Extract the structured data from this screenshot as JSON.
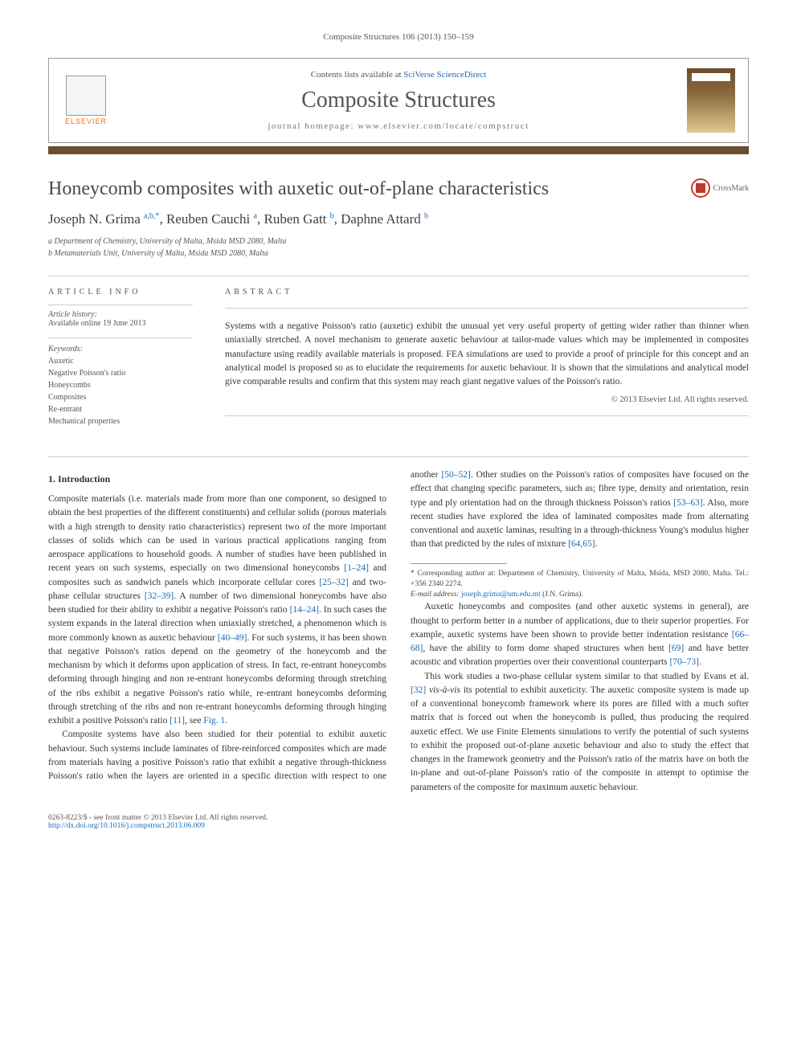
{
  "journal_ref": "Composite Structures 106 (2013) 150–159",
  "header": {
    "contents_prefix": "Contents lists available at ",
    "contents_link": "SciVerse ScienceDirect",
    "journal_name": "Composite Structures",
    "homepage_prefix": "journal homepage: ",
    "homepage_url": "www.elsevier.com/locate/compstruct",
    "publisher": "ELSEVIER",
    "cover_label": "COMPOSITE STRUCTURES"
  },
  "accent_color": "#6b4c2e",
  "title": "Honeycomb composites with auxetic out-of-plane characteristics",
  "crossmark": "CrossMark",
  "authors_html": "Joseph N. Grima <sup>a,b,*</sup>, Reuben Cauchi <sup>a</sup>, Ruben Gatt <sup>b</sup>, Daphne Attard <sup>b</sup>",
  "affiliations": [
    "a Department of Chemistry, University of Malta, Msida MSD 2080, Malta",
    "b Metamaterials Unit, University of Malta, Msida MSD 2080, Malta"
  ],
  "info": {
    "heading": "ARTICLE INFO",
    "history_label": "Article history:",
    "history_value": "Available online 19 June 2013",
    "keywords_label": "Keywords:",
    "keywords": [
      "Auxetic",
      "Negative Poisson's ratio",
      "Honeycombs",
      "Composites",
      "Re-entrant",
      "Mechanical properties"
    ]
  },
  "abstract": {
    "heading": "ABSTRACT",
    "text": "Systems with a negative Poisson's ratio (auxetic) exhibit the unusual yet very useful property of getting wider rather than thinner when uniaxially stretched. A novel mechanism to generate auxetic behaviour at tailor-made values which may be implemented in composites manufacture using readily available materials is proposed. FEA simulations are used to provide a proof of principle for this concept and an analytical model is proposed so as to elucidate the requirements for auxetic behaviour. It is shown that the simulations and analytical model give comparable results and confirm that this system may reach giant negative values of the Poisson's ratio.",
    "copyright": "© 2013 Elsevier Ltd. All rights reserved."
  },
  "section1": {
    "title": "1. Introduction",
    "p1": "Composite materials (i.e. materials made from more than one component, so designed to obtain the best properties of the different constituents) and cellular solids (porous materials with a high strength to density ratio characteristics) represent two of the more important classes of solids which can be used in various practical applications ranging from aerospace applications to household goods. A number of studies have been published in recent years on such systems, especially on two dimensional honeycombs [1–24] and composites such as sandwich panels which incorporate cellular cores [25–32] and two-phase cellular structures [32–39]. A number of two dimensional honeycombs have also been studied for their ability to exhibit a negative Poisson's ratio [14–24]. In such cases the system expands in the lateral direction when uniaxially stretched, a phenomenon which is more commonly known as auxetic behaviour [40–49]. For such systems, it has been shown that negative Poisson's ratios depend on the geometry of the honeycomb and the mechanism by which it deforms upon application of stress. In fact, re-entrant honeycombs deforming through hinging and non re-entrant honeycombs deforming through stretching of the ribs exhibit a negative Poisson's ratio while, re-entrant honeycombs deforming through stretching of the ribs and non re-entrant honeycombs deforming through hinging exhibit a positive Poisson's ratio [11], see Fig. 1.",
    "p2": "Composite systems have also been studied for their potential to exhibit auxetic behaviour. Such systems include laminates of fibre-reinforced composites which are made from materials having a positive Poisson's ratio that exhibit a negative through-thickness Poisson's ratio when the layers are oriented in a specific direction with respect to one another [50–52]. Other studies on the Poisson's ratios of composites have focused on the effect that changing specific parameters, such as; fibre type, density and orientation, resin type and ply orientation had on the through thickness Poisson's ratios [53–63]. Also, more recent studies have explored the idea of laminated composites made from alternating conventional and auxetic laminas, resulting in a through-thickness Young's modulus higher than that predicted by the rules of mixture [64,65].",
    "p3": "Auxetic honeycombs and composites (and other auxetic systems in general), are thought to perform better in a number of applications, due to their superior properties. For example, auxetic systems have been shown to provide better indentation resistance [66–68], have the ability to form dome shaped structures when bent [69] and have better acoustic and vibration properties over their conventional counterparts [70–73].",
    "p4": "This work studies a two-phase cellular system similar to that studied by Evans et al. [32] vis-à-vis its potential to exhibit auxeticity. The auxetic composite system is made up of a conventional honeycomb framework where its pores are filled with a much softer matrix that is forced out when the honeycomb is pulled, thus producing the required auxetic effect. We use Finite Elements simulations to verify the potential of such systems to exhibit the proposed out-of-plane auxetic behaviour and also to study the effect that changes in the framework geometry and the Poisson's ratio of the matrix have on both the in-plane and out-of-plane Poisson's ratio of the composite in attempt to optimise the parameters of the composite for maximum auxetic behaviour."
  },
  "footnote": {
    "corr": "* Corresponding author at: Department of Chemistry, University of Malta, Msida, MSD 2080, Malta. Tel.: +356 2340 2274.",
    "email_label": "E-mail address:",
    "email": "joseph.grima@um.edu.mt",
    "email_name": "(J.N. Grima)."
  },
  "footer": {
    "left_line1": "0263-8223/$ - see front matter © 2013 Elsevier Ltd. All rights reserved.",
    "left_line2": "http://dx.doi.org/10.1016/j.compstruct.2013.06.009"
  }
}
